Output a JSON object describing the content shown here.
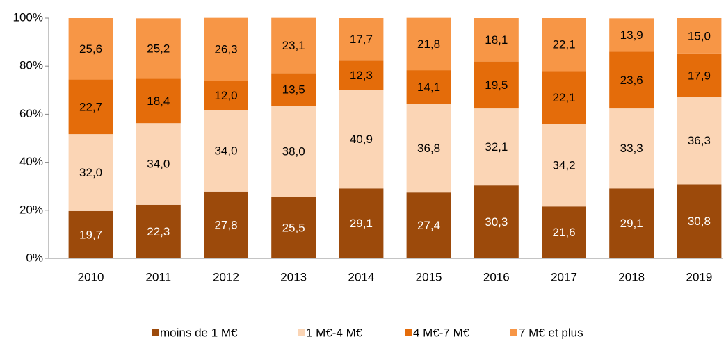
{
  "chart_data": {
    "type": "stacked_bar",
    "categories": [
      "2010",
      "2011",
      "2012",
      "2013",
      "2014",
      "2015",
      "2016",
      "2017",
      "2018",
      "2019"
    ],
    "series": [
      {
        "name": "moins de 1 M€",
        "color": "#9c4a0b",
        "label_color": "#ffffff",
        "values": [
          19.7,
          22.3,
          27.8,
          25.5,
          29.1,
          27.4,
          30.3,
          21.6,
          29.1,
          30.8
        ],
        "value_labels": [
          "19,7",
          "22,3",
          "27,8",
          "25,5",
          "29,1",
          "27,4",
          "30,3",
          "21,6",
          "29,1",
          "30,8"
        ]
      },
      {
        "name": "1 M€-4 M€",
        "color": "#fbd5b5",
        "label_color": "#000000",
        "values": [
          32.0,
          34.0,
          34.0,
          38.0,
          40.9,
          36.8,
          32.1,
          34.2,
          33.3,
          36.3
        ],
        "value_labels": [
          "32,0",
          "34,0",
          "34,0",
          "38,0",
          "40,9",
          "36,8",
          "32,1",
          "34,2",
          "33,3",
          "36,3"
        ]
      },
      {
        "name": "4 M€-7 M€",
        "color": "#e46c0a",
        "label_color": "#000000",
        "values": [
          22.7,
          18.4,
          12.0,
          13.5,
          12.3,
          14.1,
          19.5,
          22.1,
          23.6,
          17.9
        ],
        "value_labels": [
          "22,7",
          "18,4",
          "12,0",
          "13,5",
          "12,3",
          "14,1",
          "19,5",
          "22,1",
          "23,6",
          "17,9"
        ]
      },
      {
        "name": "7 M€ et plus",
        "color": "#f79646",
        "label_color": "#000000",
        "values": [
          25.6,
          25.2,
          26.3,
          23.1,
          17.7,
          21.8,
          18.1,
          22.1,
          13.9,
          15.0
        ],
        "value_labels": [
          "25,6",
          "25,2",
          "26,3",
          "23,1",
          "17,7",
          "21,8",
          "18,1",
          "22,1",
          "13,9",
          "15,0"
        ]
      }
    ],
    "ylim": [
      0,
      100
    ],
    "yticks": [
      {
        "value": 0,
        "label": "0%"
      },
      {
        "value": 20,
        "label": "20%"
      },
      {
        "value": 40,
        "label": "40%"
      },
      {
        "value": 60,
        "label": "60%"
      },
      {
        "value": 80,
        "label": "80%"
      },
      {
        "value": 100,
        "label": "100%"
      }
    ],
    "legend": "bottom"
  }
}
